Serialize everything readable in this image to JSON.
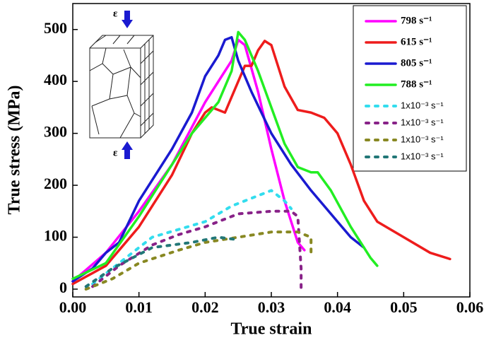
{
  "chart_data": {
    "type": "line",
    "x_label": "True strain",
    "y_label": "True stress (MPa)",
    "annotations": [
      "ε",
      "ε"
    ],
    "xlim": [
      0,
      0.06
    ],
    "ylim": [
      -15,
      550
    ],
    "xticks": [
      {
        "value": 0,
        "label": "0.00"
      },
      0.01,
      0.02,
      0.03,
      0.04,
      0.05,
      0.06
    ],
    "yticks": [
      0,
      100,
      200,
      300,
      400,
      500
    ],
    "series": [
      {
        "name": "798 s⁻¹",
        "color": "#ff00ff",
        "style": "solid",
        "x": [
          0,
          0.005,
          0.01,
          0.015,
          0.02,
          0.022,
          0.024,
          0.025,
          0.026,
          0.028,
          0.03,
          0.032,
          0.034,
          0.035
        ],
        "values": [
          15,
          70,
          150,
          240,
          360,
          400,
          440,
          480,
          470,
          380,
          270,
          170,
          90,
          75
        ]
      },
      {
        "name": "615 s⁻¹",
        "color": "#ee1c1c",
        "style": "solid",
        "x": [
          0,
          0.005,
          0.01,
          0.015,
          0.018,
          0.02,
          0.021,
          0.023,
          0.025,
          0.026,
          0.027,
          0.028,
          0.029,
          0.03,
          0.032,
          0.034,
          0.036,
          0.038,
          0.04,
          0.042,
          0.044,
          0.046,
          0.05,
          0.054,
          0.057
        ],
        "values": [
          10,
          45,
          120,
          220,
          300,
          340,
          350,
          340,
          400,
          430,
          430,
          460,
          478,
          470,
          390,
          345,
          340,
          330,
          300,
          240,
          170,
          130,
          100,
          70,
          58
        ]
      },
      {
        "name": "805 s⁻¹",
        "color": "#1a1ad0",
        "style": "solid",
        "x": [
          0,
          0.003,
          0.005,
          0.007,
          0.01,
          0.015,
          0.018,
          0.02,
          0.022,
          0.023,
          0.024,
          0.025,
          0.027,
          0.03,
          0.033,
          0.036,
          0.04,
          0.042,
          0.044
        ],
        "values": [
          15,
          40,
          70,
          90,
          170,
          270,
          340,
          410,
          450,
          480,
          485,
          440,
          380,
          300,
          240,
          190,
          130,
          100,
          80
        ]
      },
      {
        "name": "788 s⁻¹",
        "color": "#22ee22",
        "style": "solid",
        "x": [
          0,
          0.005,
          0.01,
          0.015,
          0.018,
          0.02,
          0.022,
          0.024,
          0.025,
          0.026,
          0.028,
          0.03,
          0.032,
          0.034,
          0.036,
          0.037,
          0.039,
          0.042,
          0.045,
          0.046
        ],
        "values": [
          20,
          50,
          140,
          240,
          300,
          330,
          360,
          420,
          495,
          480,
          420,
          350,
          280,
          235,
          225,
          225,
          190,
          120,
          60,
          45
        ]
      },
      {
        "name": "1x10⁻³ s⁻¹",
        "color": "#33ddee",
        "style": "dot",
        "x": [
          0.003,
          0.007,
          0.012,
          0.016,
          0.02,
          0.024,
          0.028,
          0.03,
          0.032,
          0.033
        ],
        "values": [
          10,
          50,
          100,
          115,
          130,
          160,
          180,
          190,
          170,
          155
        ]
      },
      {
        "name": "1x10⁻³ s⁻¹",
        "color": "#882288",
        "style": "dot",
        "x": [
          0.003,
          0.007,
          0.012,
          0.016,
          0.02,
          0.025,
          0.03,
          0.033,
          0.034,
          0.0345,
          0.0345
        ],
        "values": [
          5,
          45,
          85,
          105,
          120,
          145,
          150,
          150,
          140,
          40,
          0
        ]
      },
      {
        "name": "1x10⁻³ s⁻¹",
        "color": "#888822",
        "style": "dot",
        "x": [
          0.002,
          0.006,
          0.01,
          0.016,
          0.02,
          0.025,
          0.03,
          0.034,
          0.036,
          0.036
        ],
        "values": [
          0,
          20,
          50,
          75,
          90,
          100,
          110,
          110,
          100,
          60
        ]
      },
      {
        "name": "1x10⁻³ s⁻¹",
        "color": "#227777",
        "style": "dot",
        "x": [
          0.002,
          0.006,
          0.012,
          0.018,
          0.022,
          0.025
        ],
        "values": [
          5,
          40,
          80,
          90,
          100,
          95
        ]
      }
    ]
  }
}
